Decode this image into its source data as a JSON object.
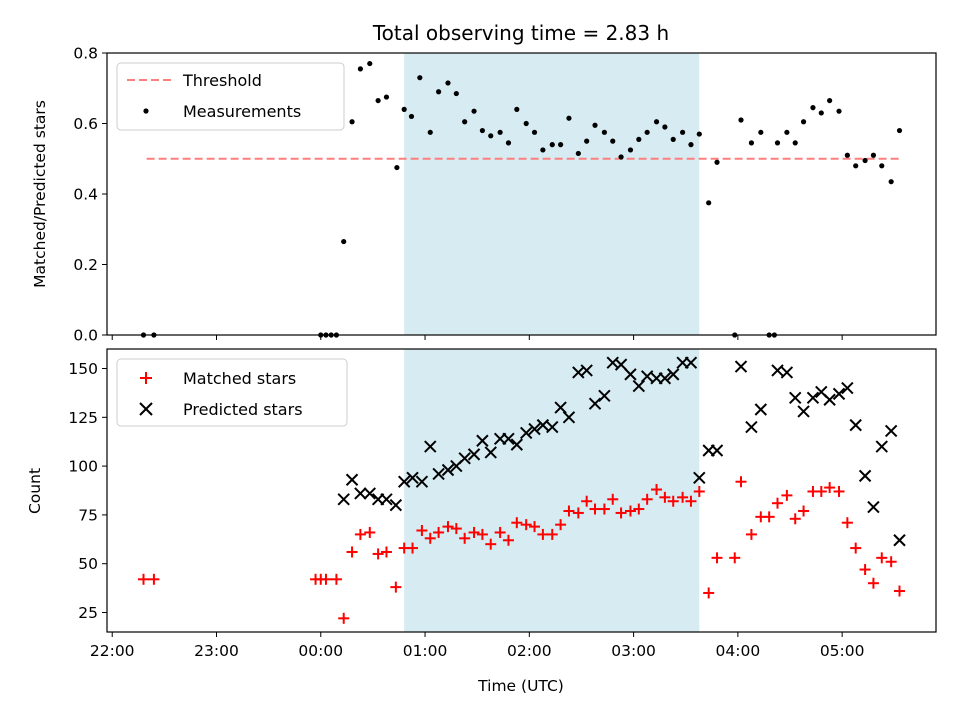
{
  "title": "Total observing time = 2.83 h",
  "chart_data": [
    {
      "type": "scatter",
      "ylabel": "Matched/Predicted stars",
      "xlabel": "",
      "xlim_hours": [
        21.95,
        29.9
      ],
      "ylim": [
        0,
        0.8
      ],
      "yticks": [
        0.0,
        0.2,
        0.4,
        0.6,
        0.8
      ],
      "ytick_labels": [
        "0.0",
        "0.2",
        "0.4",
        "0.6",
        "0.8"
      ],
      "legend_position": "top-left",
      "observing_window_hours": [
        24.8,
        27.63
      ],
      "threshold": {
        "name": "Threshold",
        "value": 0.5,
        "x_range": [
          22.33,
          29.58
        ],
        "color": "#ff7f7f"
      },
      "series": [
        {
          "name": "Measurements",
          "marker": "dot",
          "color": "#000000",
          "x": [
            22.3,
            22.4,
            24.0,
            24.05,
            24.1,
            24.15,
            24.22,
            24.3,
            24.38,
            24.47,
            24.55,
            24.63,
            24.73,
            24.8,
            24.87,
            24.95,
            25.05,
            25.13,
            25.22,
            25.3,
            25.38,
            25.47,
            25.55,
            25.63,
            25.72,
            25.8,
            25.88,
            25.97,
            26.05,
            26.13,
            26.22,
            26.3,
            26.38,
            26.47,
            26.55,
            26.63,
            26.72,
            26.8,
            26.88,
            26.97,
            27.05,
            27.13,
            27.22,
            27.3,
            27.38,
            27.47,
            27.55,
            27.63,
            27.72,
            27.8,
            27.97,
            28.03,
            28.13,
            28.22,
            28.3,
            28.35,
            28.38,
            28.47,
            28.55,
            28.63,
            28.72,
            28.8,
            28.88,
            28.97,
            29.05,
            29.13,
            29.22,
            29.3,
            29.38,
            29.47,
            29.55
          ],
          "y": [
            0.0,
            0.0,
            0.0,
            0.0,
            0.0,
            0.0,
            0.265,
            0.605,
            0.755,
            0.77,
            0.665,
            0.675,
            0.475,
            0.64,
            0.62,
            0.73,
            0.575,
            0.69,
            0.715,
            0.685,
            0.605,
            0.635,
            0.58,
            0.565,
            0.575,
            0.545,
            0.64,
            0.6,
            0.575,
            0.525,
            0.54,
            0.54,
            0.615,
            0.515,
            0.55,
            0.595,
            0.575,
            0.55,
            0.505,
            0.525,
            0.555,
            0.575,
            0.605,
            0.59,
            0.555,
            0.575,
            0.54,
            0.57,
            0.375,
            0.49,
            0.0,
            0.61,
            0.545,
            0.575,
            0.0,
            0.0,
            0.545,
            0.575,
            0.545,
            0.605,
            0.645,
            0.63,
            0.665,
            0.635,
            0.51,
            0.48,
            0.495,
            0.51,
            0.48,
            0.435,
            0.58
          ]
        }
      ]
    },
    {
      "type": "scatter",
      "ylabel": "Count",
      "xlabel": "Time (UTC)",
      "xlim_hours": [
        21.95,
        29.9
      ],
      "ylim": [
        15,
        160
      ],
      "yticks": [
        25,
        50,
        75,
        100,
        125,
        150
      ],
      "xticks_hours": [
        22,
        23,
        24,
        25,
        26,
        27,
        28,
        29
      ],
      "xtick_labels": [
        "22:00",
        "23:00",
        "00:00",
        "01:00",
        "02:00",
        "03:00",
        "04:00",
        "05:00"
      ],
      "legend_position": "top-left",
      "observing_window_hours": [
        24.8,
        27.63
      ],
      "series": [
        {
          "name": "Matched stars",
          "marker": "plus",
          "color": "#ff0000",
          "x": [
            22.3,
            22.4,
            23.95,
            24.0,
            24.05,
            24.15,
            24.22,
            24.3,
            24.38,
            24.47,
            24.55,
            24.63,
            24.72,
            24.8,
            24.88,
            24.97,
            25.05,
            25.13,
            25.22,
            25.3,
            25.38,
            25.47,
            25.55,
            25.63,
            25.72,
            25.8,
            25.88,
            25.97,
            26.05,
            26.13,
            26.22,
            26.3,
            26.38,
            26.47,
            26.55,
            26.63,
            26.72,
            26.8,
            26.88,
            26.97,
            27.05,
            27.13,
            27.22,
            27.3,
            27.38,
            27.47,
            27.55,
            27.63,
            27.72,
            27.8,
            27.97,
            28.03,
            28.13,
            28.22,
            28.3,
            28.38,
            28.47,
            28.55,
            28.63,
            28.72,
            28.8,
            28.88,
            28.97,
            29.05,
            29.13,
            29.22,
            29.3,
            29.38,
            29.47,
            29.55
          ],
          "y": [
            42,
            42,
            42,
            42,
            42,
            42,
            22,
            56,
            65,
            66,
            55,
            56,
            38,
            58,
            58,
            67,
            63,
            66,
            69,
            68,
            63,
            66,
            65,
            60,
            66,
            62,
            71,
            70,
            69,
            65,
            65,
            70,
            77,
            76,
            82,
            78,
            78,
            83,
            76,
            77,
            78,
            83,
            88,
            84,
            82,
            84,
            82,
            87,
            35,
            53,
            53,
            92,
            65,
            74,
            74,
            81,
            85,
            73,
            77,
            87,
            87,
            89,
            87,
            71,
            58,
            47,
            40,
            53,
            51,
            36
          ]
        },
        {
          "name": "Predicted stars",
          "marker": "x",
          "color": "#000000",
          "x": [
            24.22,
            24.3,
            24.38,
            24.47,
            24.55,
            24.63,
            24.72,
            24.8,
            24.88,
            24.97,
            25.05,
            25.13,
            25.22,
            25.3,
            25.38,
            25.47,
            25.55,
            25.63,
            25.72,
            25.8,
            25.88,
            25.97,
            26.05,
            26.13,
            26.22,
            26.3,
            26.38,
            26.47,
            26.55,
            26.63,
            26.72,
            26.8,
            26.88,
            26.97,
            27.05,
            27.13,
            27.22,
            27.3,
            27.38,
            27.47,
            27.55,
            27.63,
            27.72,
            27.8,
            28.03,
            28.13,
            28.22,
            28.38,
            28.47,
            28.55,
            28.63,
            28.72,
            28.8,
            28.88,
            28.97,
            29.05,
            29.13,
            29.22,
            29.3,
            29.38,
            29.47,
            29.55
          ],
          "y": [
            83,
            93,
            86,
            86,
            83,
            83,
            80,
            92,
            94,
            92,
            110,
            96,
            98,
            100,
            104,
            106,
            113,
            107,
            114,
            114,
            111,
            117,
            119,
            121,
            120,
            130,
            125,
            148,
            149,
            132,
            136,
            153,
            152,
            147,
            141,
            146,
            145,
            145,
            147,
            153,
            153,
            94,
            108,
            108,
            151,
            120,
            129,
            149,
            148,
            135,
            128,
            135,
            138,
            134,
            137,
            140,
            121,
            95,
            79,
            110,
            118,
            62
          ]
        }
      ]
    }
  ]
}
